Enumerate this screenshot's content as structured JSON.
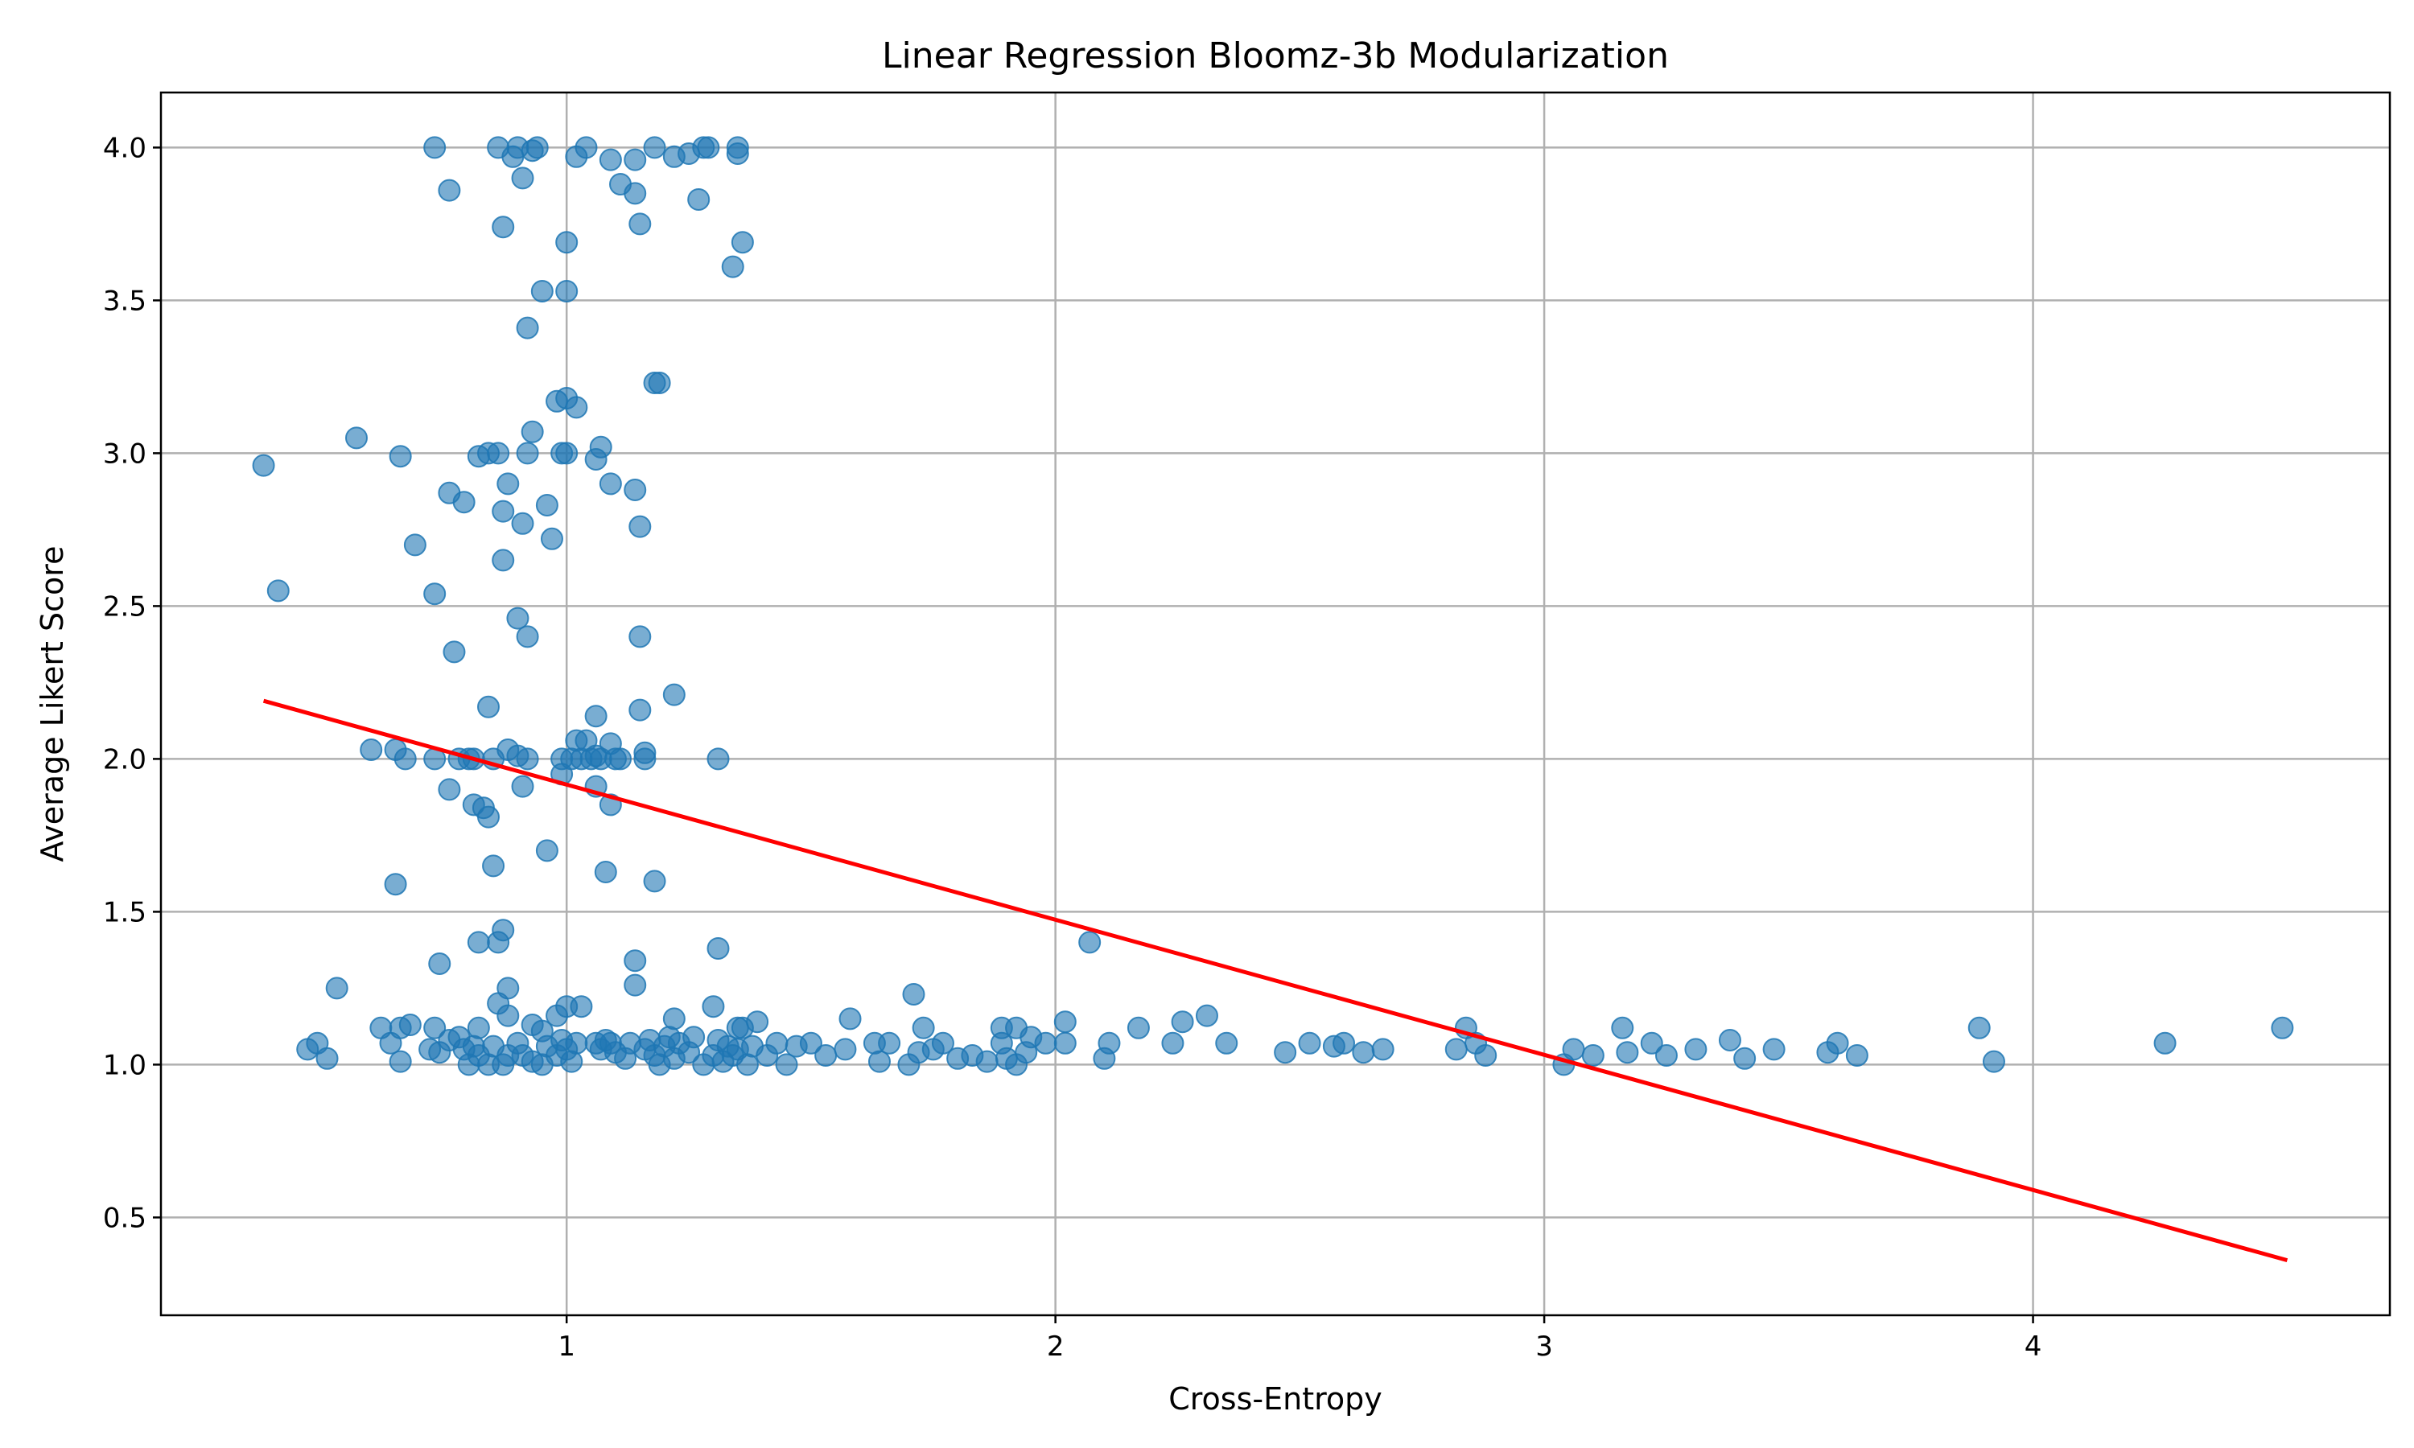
{
  "chart_data": {
    "type": "scatter",
    "title": "Linear Regression Bloomz-3b Modularization",
    "xlabel": "Cross-Entropy",
    "ylabel": "Average Likert Score",
    "xlim": [
      0.17,
      4.73
    ],
    "ylim": [
      0.18,
      4.18
    ],
    "xticks": [
      1,
      2,
      3,
      4
    ],
    "yticks": [
      0.5,
      1.0,
      1.5,
      2.0,
      2.5,
      3.0,
      3.5,
      4.0
    ],
    "ytick_labels": [
      "0.5",
      "1.0",
      "1.5",
      "2.0",
      "2.5",
      "3.0",
      "3.5",
      "4.0"
    ],
    "grid": true,
    "colors": {
      "points": "#1f77b4",
      "fit_line": "#ff0000"
    },
    "regression_line": {
      "x": [
        0.38,
        4.52
      ],
      "y": [
        2.19,
        0.36
      ]
    },
    "series": [
      {
        "points": [
          [
            0.73,
            4.0
          ],
          [
            0.86,
            4.0
          ],
          [
            0.9,
            4.0
          ],
          [
            0.93,
            3.99
          ],
          [
            0.94,
            4.0
          ],
          [
            0.89,
            3.97
          ],
          [
            1.02,
            3.97
          ],
          [
            1.04,
            4.0
          ],
          [
            1.09,
            3.96
          ],
          [
            1.14,
            3.96
          ],
          [
            1.18,
            4.0
          ],
          [
            1.22,
            3.97
          ],
          [
            1.25,
            3.98
          ],
          [
            1.28,
            4.0
          ],
          [
            1.29,
            4.0
          ],
          [
            1.35,
            4.0
          ],
          [
            1.35,
            3.98
          ],
          [
            0.76,
            3.86
          ],
          [
            0.91,
            3.9
          ],
          [
            1.11,
            3.88
          ],
          [
            1.14,
            3.85
          ],
          [
            1.27,
            3.83
          ],
          [
            0.87,
            3.74
          ],
          [
            1.15,
            3.75
          ],
          [
            1.0,
            3.69
          ],
          [
            1.36,
            3.69
          ],
          [
            1.34,
            3.61
          ],
          [
            0.95,
            3.53
          ],
          [
            1.0,
            3.53
          ],
          [
            0.92,
            3.41
          ],
          [
            1.18,
            3.23
          ],
          [
            1.19,
            3.23
          ],
          [
            0.98,
            3.17
          ],
          [
            1.0,
            3.18
          ],
          [
            1.02,
            3.15
          ],
          [
            0.93,
            3.07
          ],
          [
            0.57,
            3.05
          ],
          [
            0.38,
            2.96
          ],
          [
            0.66,
            2.99
          ],
          [
            0.82,
            2.99
          ],
          [
            0.84,
            3.0
          ],
          [
            0.86,
            3.0
          ],
          [
            0.92,
            3.0
          ],
          [
            0.99,
            3.0
          ],
          [
            1.0,
            3.0
          ],
          [
            1.07,
            3.02
          ],
          [
            1.06,
            2.98
          ],
          [
            1.09,
            2.9
          ],
          [
            1.14,
            2.88
          ],
          [
            0.88,
            2.9
          ],
          [
            0.76,
            2.87
          ],
          [
            0.79,
            2.84
          ],
          [
            0.87,
            2.81
          ],
          [
            0.96,
            2.83
          ],
          [
            0.91,
            2.77
          ],
          [
            1.15,
            2.76
          ],
          [
            0.97,
            2.72
          ],
          [
            0.69,
            2.7
          ],
          [
            0.87,
            2.65
          ],
          [
            0.41,
            2.55
          ],
          [
            0.73,
            2.54
          ],
          [
            0.9,
            2.46
          ],
          [
            0.92,
            2.4
          ],
          [
            1.15,
            2.4
          ],
          [
            0.77,
            2.35
          ],
          [
            1.22,
            2.21
          ],
          [
            0.84,
            2.17
          ],
          [
            1.06,
            2.14
          ],
          [
            1.15,
            2.16
          ],
          [
            0.6,
            2.03
          ],
          [
            0.65,
            2.03
          ],
          [
            0.67,
            2.0
          ],
          [
            0.73,
            2.0
          ],
          [
            0.78,
            2.0
          ],
          [
            0.8,
            2.0
          ],
          [
            0.81,
            2.0
          ],
          [
            0.85,
            2.0
          ],
          [
            0.88,
            2.03
          ],
          [
            0.9,
            2.01
          ],
          [
            0.92,
            2.0
          ],
          [
            0.99,
            2.0
          ],
          [
            1.01,
            2.0
          ],
          [
            1.02,
            2.06
          ],
          [
            1.03,
            2.0
          ],
          [
            1.04,
            2.06
          ],
          [
            1.05,
            2.0
          ],
          [
            1.06,
            2.01
          ],
          [
            1.07,
            2.0
          ],
          [
            1.09,
            2.05
          ],
          [
            1.1,
            2.0
          ],
          [
            1.11,
            2.0
          ],
          [
            1.16,
            2.02
          ],
          [
            1.16,
            2.0
          ],
          [
            1.31,
            2.0
          ],
          [
            0.99,
            1.95
          ],
          [
            0.76,
            1.9
          ],
          [
            0.91,
            1.91
          ],
          [
            1.06,
            1.91
          ],
          [
            0.81,
            1.85
          ],
          [
            0.83,
            1.84
          ],
          [
            1.09,
            1.85
          ],
          [
            0.84,
            1.81
          ],
          [
            0.96,
            1.7
          ],
          [
            0.85,
            1.65
          ],
          [
            1.08,
            1.63
          ],
          [
            0.65,
            1.59
          ],
          [
            1.18,
            1.6
          ],
          [
            0.87,
            1.44
          ],
          [
            0.82,
            1.4
          ],
          [
            0.86,
            1.4
          ],
          [
            2.07,
            1.4
          ],
          [
            1.31,
            1.38
          ],
          [
            1.14,
            1.34
          ],
          [
            0.74,
            1.33
          ],
          [
            1.14,
            1.26
          ],
          [
            0.53,
            1.25
          ],
          [
            0.88,
            1.25
          ],
          [
            1.71,
            1.23
          ],
          [
            0.86,
            1.2
          ],
          [
            1.0,
            1.19
          ],
          [
            1.03,
            1.19
          ],
          [
            1.3,
            1.19
          ],
          [
            0.88,
            1.16
          ],
          [
            0.98,
            1.16
          ],
          [
            1.22,
            1.15
          ],
          [
            1.58,
            1.15
          ],
          [
            2.31,
            1.16
          ],
          [
            0.62,
            1.12
          ],
          [
            0.66,
            1.12
          ],
          [
            0.68,
            1.13
          ],
          [
            0.73,
            1.12
          ],
          [
            0.82,
            1.12
          ],
          [
            0.93,
            1.13
          ],
          [
            0.95,
            1.11
          ],
          [
            1.35,
            1.12
          ],
          [
            1.36,
            1.12
          ],
          [
            1.39,
            1.14
          ],
          [
            1.73,
            1.12
          ],
          [
            1.89,
            1.12
          ],
          [
            1.92,
            1.12
          ],
          [
            2.02,
            1.14
          ],
          [
            2.17,
            1.12
          ],
          [
            2.26,
            1.14
          ],
          [
            2.84,
            1.12
          ],
          [
            3.16,
            1.12
          ],
          [
            3.89,
            1.12
          ],
          [
            4.51,
            1.12
          ],
          [
            0.49,
            1.07
          ],
          [
            0.47,
            1.05
          ],
          [
            0.51,
            1.02
          ],
          [
            0.64,
            1.07
          ],
          [
            0.66,
            1.01
          ],
          [
            0.72,
            1.05
          ],
          [
            0.74,
            1.04
          ],
          [
            0.76,
            1.08
          ],
          [
            0.78,
            1.09
          ],
          [
            0.79,
            1.05
          ],
          [
            0.8,
            1.0
          ],
          [
            0.81,
            1.06
          ],
          [
            0.82,
            1.03
          ],
          [
            0.84,
            1.0
          ],
          [
            0.85,
            1.06
          ],
          [
            0.87,
            1.0
          ],
          [
            0.88,
            1.03
          ],
          [
            0.9,
            1.07
          ],
          [
            0.91,
            1.03
          ],
          [
            0.93,
            1.01
          ],
          [
            0.95,
            1.0
          ],
          [
            0.96,
            1.06
          ],
          [
            0.98,
            1.03
          ],
          [
            0.99,
            1.08
          ],
          [
            1.0,
            1.05
          ],
          [
            1.01,
            1.01
          ],
          [
            1.02,
            1.07
          ],
          [
            1.06,
            1.07
          ],
          [
            1.07,
            1.05
          ],
          [
            1.08,
            1.08
          ],
          [
            1.09,
            1.07
          ],
          [
            1.1,
            1.04
          ],
          [
            1.12,
            1.02
          ],
          [
            1.13,
            1.07
          ],
          [
            1.16,
            1.05
          ],
          [
            1.17,
            1.08
          ],
          [
            1.18,
            1.03
          ],
          [
            1.19,
            1.0
          ],
          [
            1.2,
            1.06
          ],
          [
            1.21,
            1.09
          ],
          [
            1.22,
            1.02
          ],
          [
            1.23,
            1.07
          ],
          [
            1.25,
            1.04
          ],
          [
            1.26,
            1.09
          ],
          [
            1.28,
            1.0
          ],
          [
            1.3,
            1.03
          ],
          [
            1.31,
            1.08
          ],
          [
            1.32,
            1.01
          ],
          [
            1.33,
            1.06
          ],
          [
            1.34,
            1.03
          ],
          [
            1.35,
            1.05
          ],
          [
            1.37,
            1.0
          ],
          [
            1.38,
            1.06
          ],
          [
            1.41,
            1.03
          ],
          [
            1.43,
            1.07
          ],
          [
            1.45,
            1.0
          ],
          [
            1.47,
            1.06
          ],
          [
            1.5,
            1.07
          ],
          [
            1.53,
            1.03
          ],
          [
            1.57,
            1.05
          ],
          [
            1.63,
            1.07
          ],
          [
            1.64,
            1.01
          ],
          [
            1.66,
            1.07
          ],
          [
            1.7,
            1.0
          ],
          [
            1.72,
            1.04
          ],
          [
            1.75,
            1.05
          ],
          [
            1.77,
            1.07
          ],
          [
            1.8,
            1.02
          ],
          [
            1.83,
            1.03
          ],
          [
            1.86,
            1.01
          ],
          [
            1.89,
            1.07
          ],
          [
            1.9,
            1.02
          ],
          [
            1.92,
            1.0
          ],
          [
            1.94,
            1.04
          ],
          [
            1.95,
            1.09
          ],
          [
            1.98,
            1.07
          ],
          [
            2.02,
            1.07
          ],
          [
            2.1,
            1.02
          ],
          [
            2.11,
            1.07
          ],
          [
            2.24,
            1.07
          ],
          [
            2.35,
            1.07
          ],
          [
            2.47,
            1.04
          ],
          [
            2.52,
            1.07
          ],
          [
            2.57,
            1.06
          ],
          [
            2.59,
            1.07
          ],
          [
            2.63,
            1.04
          ],
          [
            2.67,
            1.05
          ],
          [
            2.82,
            1.05
          ],
          [
            2.86,
            1.07
          ],
          [
            2.88,
            1.03
          ],
          [
            3.04,
            1.0
          ],
          [
            3.06,
            1.05
          ],
          [
            3.1,
            1.03
          ],
          [
            3.17,
            1.04
          ],
          [
            3.22,
            1.07
          ],
          [
            3.25,
            1.03
          ],
          [
            3.31,
            1.05
          ],
          [
            3.38,
            1.08
          ],
          [
            3.41,
            1.02
          ],
          [
            3.47,
            1.05
          ],
          [
            3.58,
            1.04
          ],
          [
            3.6,
            1.07
          ],
          [
            3.64,
            1.03
          ],
          [
            3.92,
            1.01
          ],
          [
            4.27,
            1.07
          ]
        ]
      }
    ]
  }
}
